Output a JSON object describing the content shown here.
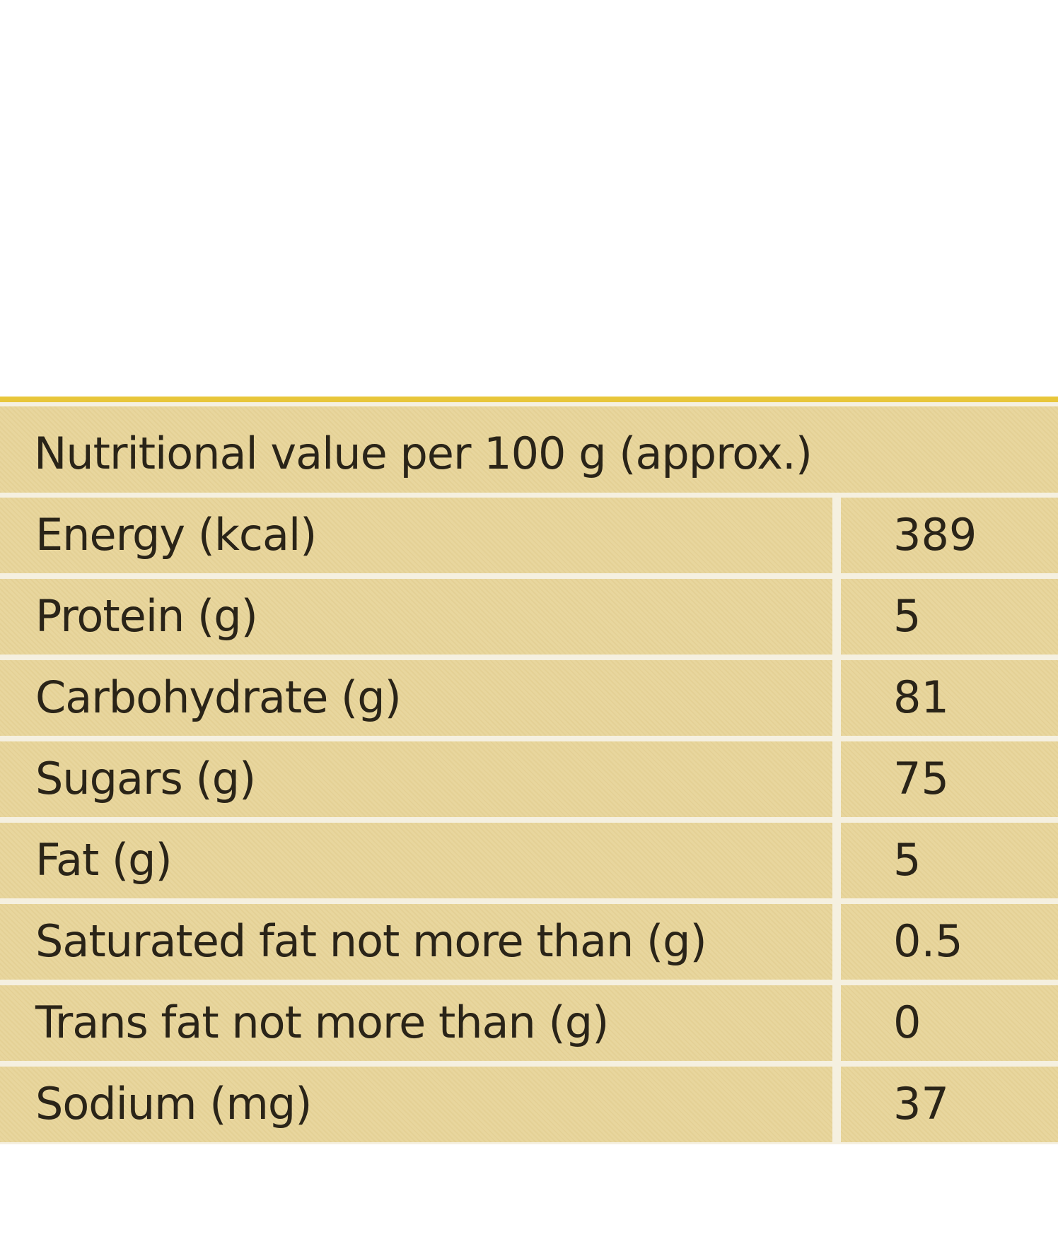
{
  "panel": {
    "accent": "#e8c63a",
    "cell_bg": "#e8d69e",
    "separator": "#f5f0e0"
  },
  "table": {
    "title": "Nutritional value per 100 g (approx.)",
    "rows": [
      {
        "name": "Energy (kcal)",
        "value": "389"
      },
      {
        "name": "Protein (g)",
        "value": "5"
      },
      {
        "name": "Carbohydrate (g)",
        "value": "81"
      },
      {
        "name": "Sugars (g)",
        "value": "75"
      },
      {
        "name": "Fat (g)",
        "value": "5"
      },
      {
        "name": "Saturated fat not more than (g)",
        "value": "0.5"
      },
      {
        "name": "Trans fat not more than (g)",
        "value": "0"
      },
      {
        "name": "Sodium (mg)",
        "value": "37"
      }
    ]
  }
}
